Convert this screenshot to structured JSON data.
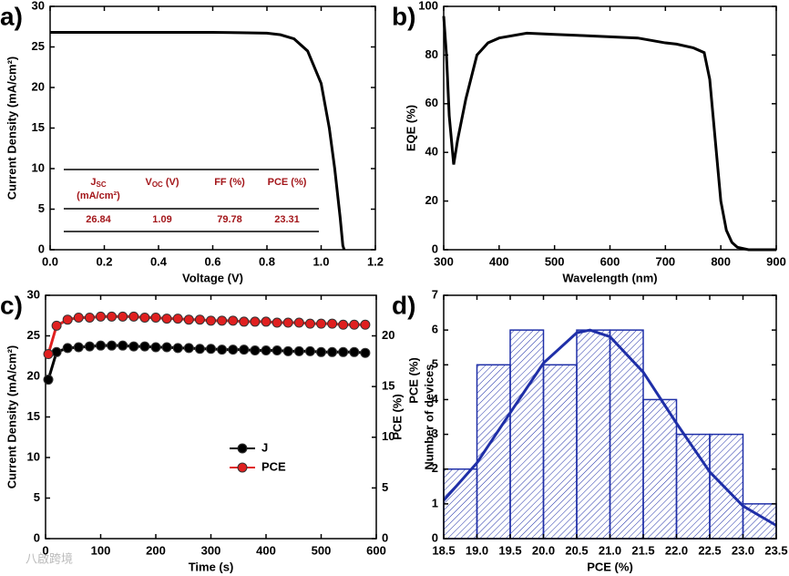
{
  "chart_data": [
    {
      "type": "line",
      "panel_label": "a)",
      "xlabel": "Voltage (V)",
      "ylabel": "Current Density (mA/cm²)",
      "xlim": [
        0,
        1.2
      ],
      "xticks": [
        {
          "value": 0,
          "label": "0.0"
        },
        0.2,
        0.4,
        0.6,
        0.8,
        {
          "value": 1,
          "label": "1.0"
        },
        1.2
      ],
      "ylim": [
        0,
        30
      ],
      "yticks": [
        0,
        5,
        10,
        15,
        20,
        25,
        30
      ],
      "x": [
        0,
        0.1,
        0.2,
        0.3,
        0.4,
        0.5,
        0.6,
        0.7,
        0.8,
        0.85,
        0.9,
        0.95,
        1.0,
        1.03,
        1.05,
        1.07,
        1.08,
        1.085
      ],
      "series": [
        {
          "color": "#000000",
          "values": [
            26.8,
            26.8,
            26.8,
            26.8,
            26.8,
            26.8,
            26.8,
            26.75,
            26.7,
            26.5,
            26.0,
            24.5,
            20.5,
            15,
            10,
            4,
            0.5,
            0
          ]
        }
      ],
      "table": {
        "headers": [
          {
            "main": "J",
            "sub": "SC",
            "unit": "(mA/cm²)"
          },
          {
            "main": "V",
            "sub": "OC",
            "unit": "(V)"
          },
          {
            "main": "FF (%)"
          },
          {
            "main": "PCE (%)"
          }
        ],
        "rows": [
          [
            "26.84",
            "1.09",
            "79.78",
            "23.31"
          ]
        ]
      }
    },
    {
      "type": "line",
      "panel_label": "b)",
      "xlabel": "Wavelength (nm)",
      "ylabel": "EQE (%)",
      "xlim": [
        300,
        900
      ],
      "xticks": [
        300,
        400,
        500,
        600,
        700,
        800,
        900
      ],
      "ylim": [
        0,
        100
      ],
      "yticks": [
        0,
        20,
        40,
        60,
        80,
        100
      ],
      "x": [
        300,
        305,
        310,
        318,
        325,
        340,
        360,
        380,
        400,
        450,
        500,
        550,
        600,
        650,
        700,
        720,
        750,
        770,
        780,
        790,
        800,
        810,
        820,
        830,
        850,
        900
      ],
      "series": [
        {
          "color": "#000000",
          "values": [
            96,
            80,
            55,
            35,
            45,
            62,
            80,
            85,
            87,
            89,
            88.5,
            88,
            87.5,
            87,
            85,
            84.5,
            83,
            81,
            70,
            45,
            20,
            8,
            3,
            1,
            0,
            0
          ]
        }
      ]
    },
    {
      "type": "line",
      "panel_label": "c)",
      "xlabel": "Time (s)",
      "ylabel": "Current Density (mA/cm²)",
      "y2label": "PCE (%)",
      "xlim": [
        0,
        600
      ],
      "xticks": [
        0,
        100,
        200,
        300,
        400,
        500,
        600
      ],
      "ylim": [
        0,
        30
      ],
      "yticks": [
        0,
        5,
        10,
        15,
        20,
        25,
        30
      ],
      "y2lim": [
        0,
        24
      ],
      "y2ticks": [
        0,
        5,
        10,
        15,
        20
      ],
      "markers": true,
      "x": [
        5,
        20,
        40,
        60,
        80,
        100,
        120,
        140,
        160,
        180,
        200,
        220,
        240,
        260,
        280,
        300,
        320,
        340,
        360,
        380,
        400,
        420,
        440,
        460,
        480,
        500,
        520,
        540,
        560,
        580
      ],
      "series": [
        {
          "name": "J",
          "color": "#000000",
          "values": [
            19.6,
            23.0,
            23.5,
            23.6,
            23.7,
            23.8,
            23.8,
            23.8,
            23.7,
            23.7,
            23.6,
            23.6,
            23.5,
            23.5,
            23.4,
            23.4,
            23.3,
            23.3,
            23.3,
            23.2,
            23.2,
            23.2,
            23.1,
            23.1,
            23.1,
            23.0,
            23.0,
            23.0,
            23.0,
            22.9
          ]
        },
        {
          "name": "PCE",
          "color": "#e02020",
          "axis": "y2",
          "values": [
            18.2,
            21.0,
            21.6,
            21.8,
            21.8,
            21.9,
            21.9,
            21.9,
            21.9,
            21.8,
            21.8,
            21.7,
            21.7,
            21.6,
            21.6,
            21.5,
            21.5,
            21.5,
            21.4,
            21.4,
            21.4,
            21.3,
            21.3,
            21.3,
            21.2,
            21.2,
            21.2,
            21.1,
            21.1,
            21.1
          ]
        }
      ]
    },
    {
      "type": "histogram",
      "panel_label": "d)",
      "xlabel": "PCE (%)",
      "ylabel": "Number of devices",
      "overlay_label": "PCE (%)",
      "xlim": [
        18.5,
        23.5
      ],
      "xticks": [
        18.5,
        {
          "value": 19,
          "label": "19.0"
        },
        19.5,
        {
          "value": 20,
          "label": "20.0"
        },
        20.5,
        {
          "value": 21,
          "label": "21.0"
        },
        21.5,
        {
          "value": 22,
          "label": "22.0"
        },
        22.5,
        {
          "value": 23,
          "label": "23.0"
        },
        23.5
      ],
      "ylim": [
        0,
        7
      ],
      "yticks": [
        0,
        1,
        2,
        3,
        4,
        5,
        6,
        7
      ],
      "color": "#1f2fa8",
      "bins": [
        18.5,
        19,
        19.5,
        20,
        20.5,
        21,
        21.5,
        22,
        22.5,
        23,
        23.5
      ],
      "values": [
        2,
        5,
        6,
        5,
        6,
        6,
        4,
        3,
        3,
        1
      ],
      "fit": {
        "x": [
          18.5,
          19,
          19.5,
          20,
          20.5,
          20.7,
          21,
          21.5,
          22,
          22.5,
          23,
          23.5
        ],
        "values": [
          1.1,
          2.18,
          3.62,
          5.05,
          5.92,
          6,
          5.81,
          4.79,
          3.32,
          1.92,
          0.94,
          0.38
        ]
      }
    }
  ],
  "watermark": "八啟跨境"
}
